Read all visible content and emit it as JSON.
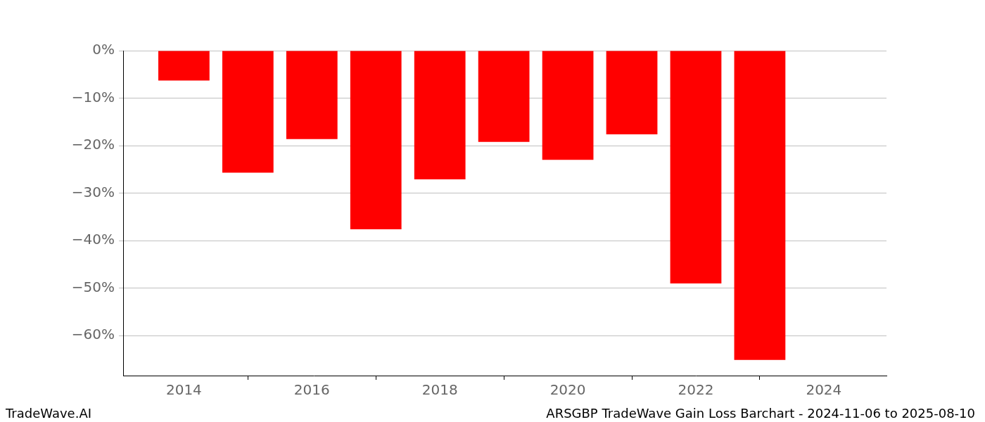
{
  "chart_data": {
    "type": "bar",
    "title": "ARSGBP TradeWave Gain Loss Barchart - 2024-11-06 to 2025-08-10",
    "annotations": [
      "TradeWave.AI"
    ],
    "x": [
      2014,
      2015,
      2016,
      2017,
      2018,
      2019,
      2020,
      2021,
      2022,
      2023
    ],
    "values": [
      -6.3,
      -25.7,
      -18.6,
      -37.6,
      -27.1,
      -19.2,
      -23.0,
      -17.6,
      -49.0,
      -65.1
    ],
    "color": "#ff0000",
    "xlim": [
      2013.05,
      2024.98
    ],
    "xticks": [
      2014,
      2016,
      2018,
      2020,
      2022,
      2024
    ],
    "ylim": [
      -68.4,
      0
    ],
    "yticks": [
      {
        "value": 0,
        "label": "0%"
      },
      {
        "value": -10,
        "label": "−10%"
      },
      {
        "value": -20,
        "label": "−20%"
      },
      {
        "value": -30,
        "label": "−30%"
      },
      {
        "value": -40,
        "label": "−40%"
      },
      {
        "value": -50,
        "label": "−50%"
      },
      {
        "value": -60,
        "label": "−60%"
      }
    ],
    "grid": true
  }
}
